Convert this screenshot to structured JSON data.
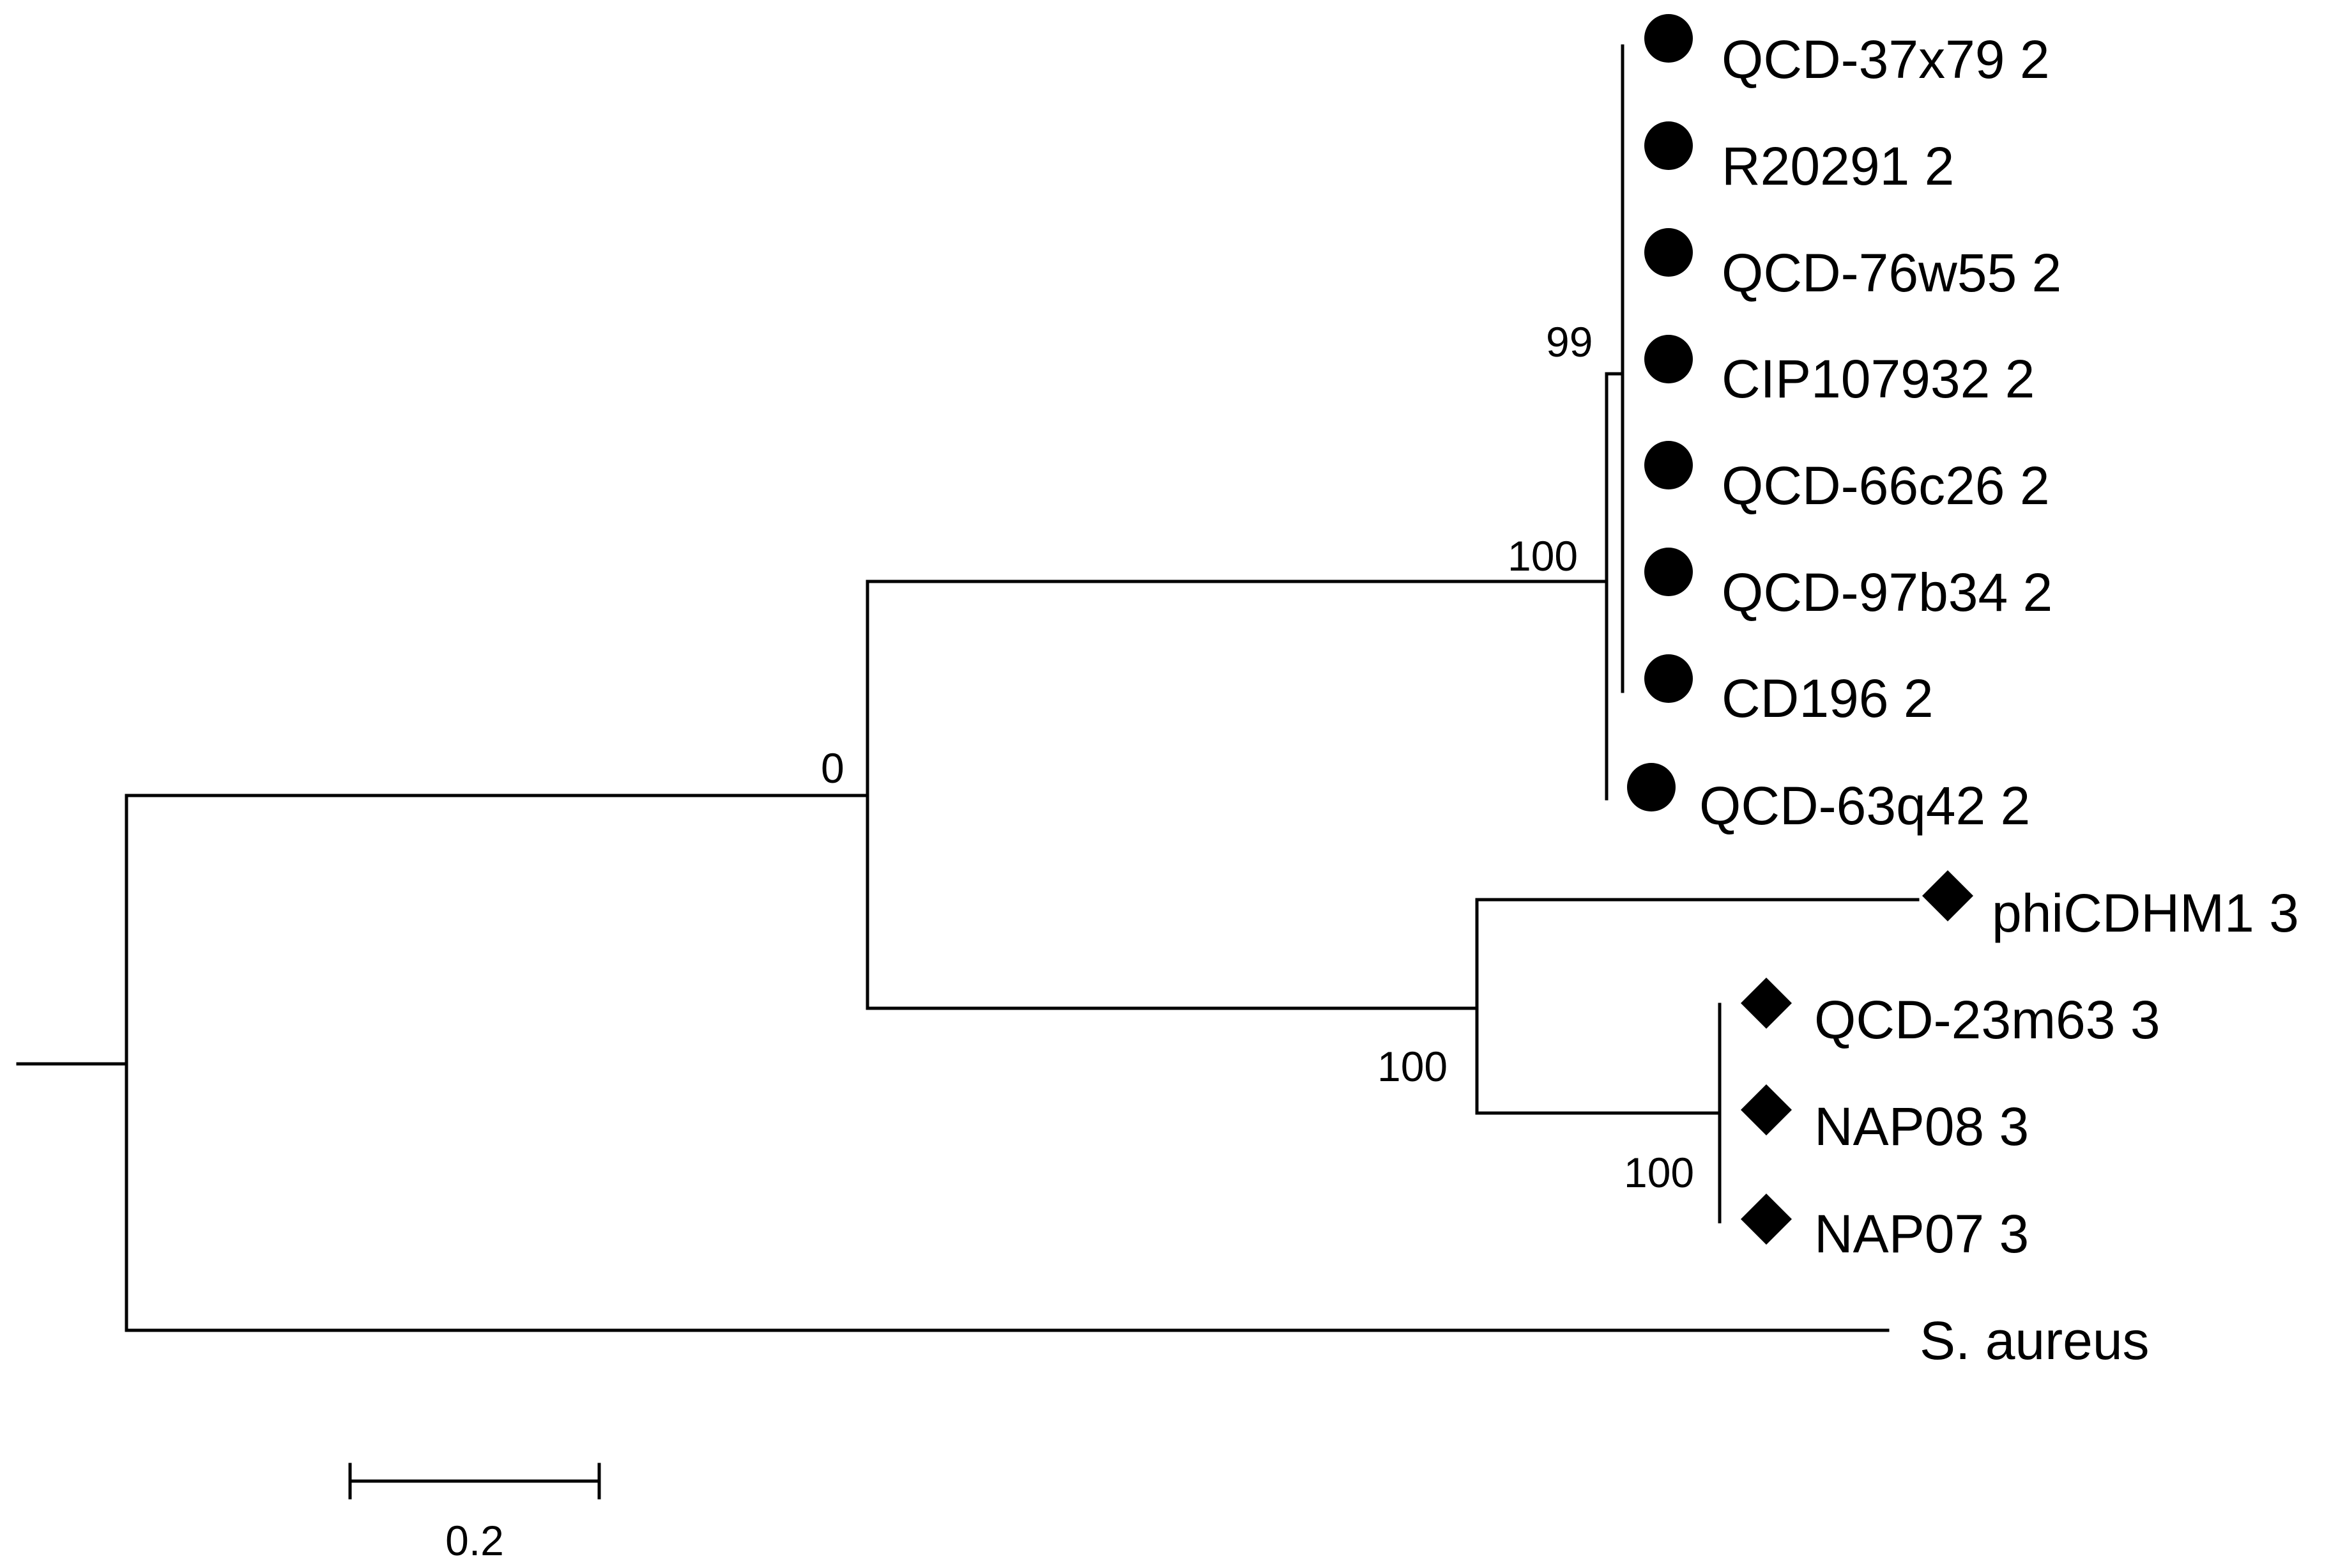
{
  "tree": {
    "leaves": [
      {
        "id": "qcd37x79",
        "label": "QCD-37x79 2",
        "marker": "circle"
      },
      {
        "id": "r20291",
        "label": "R20291 2",
        "marker": "circle"
      },
      {
        "id": "qcd76w55",
        "label": "QCD-76w55 2",
        "marker": "circle"
      },
      {
        "id": "cip107932",
        "label": "CIP107932 2",
        "marker": "circle"
      },
      {
        "id": "qcd66c26",
        "label": "QCD-66c26 2",
        "marker": "circle"
      },
      {
        "id": "qcd97b34",
        "label": "QCD-97b34 2",
        "marker": "circle"
      },
      {
        "id": "cd196",
        "label": "CD196 2",
        "marker": "circle"
      },
      {
        "id": "qcd63q42",
        "label": "QCD-63q42 2",
        "marker": "circle"
      },
      {
        "id": "phicdhm1",
        "label": "phiCDHM1 3",
        "marker": "diamond"
      },
      {
        "id": "qcd23m63",
        "label": "QCD-23m63 3",
        "marker": "diamond"
      },
      {
        "id": "nap08",
        "label": "NAP08 3",
        "marker": "diamond"
      },
      {
        "id": "nap07",
        "label": "NAP07 3",
        "marker": "diamond"
      },
      {
        "id": "saureus",
        "label": "S. aureus",
        "marker": "none"
      }
    ],
    "support_values": {
      "group2_inner": "99",
      "group2": "100",
      "ingroup": "0",
      "group3": "100",
      "group3_inner": "100"
    },
    "scale_bar": {
      "label": "0.2",
      "value": 0.2
    },
    "marker_color": "#000000",
    "line_color": "#000000"
  }
}
